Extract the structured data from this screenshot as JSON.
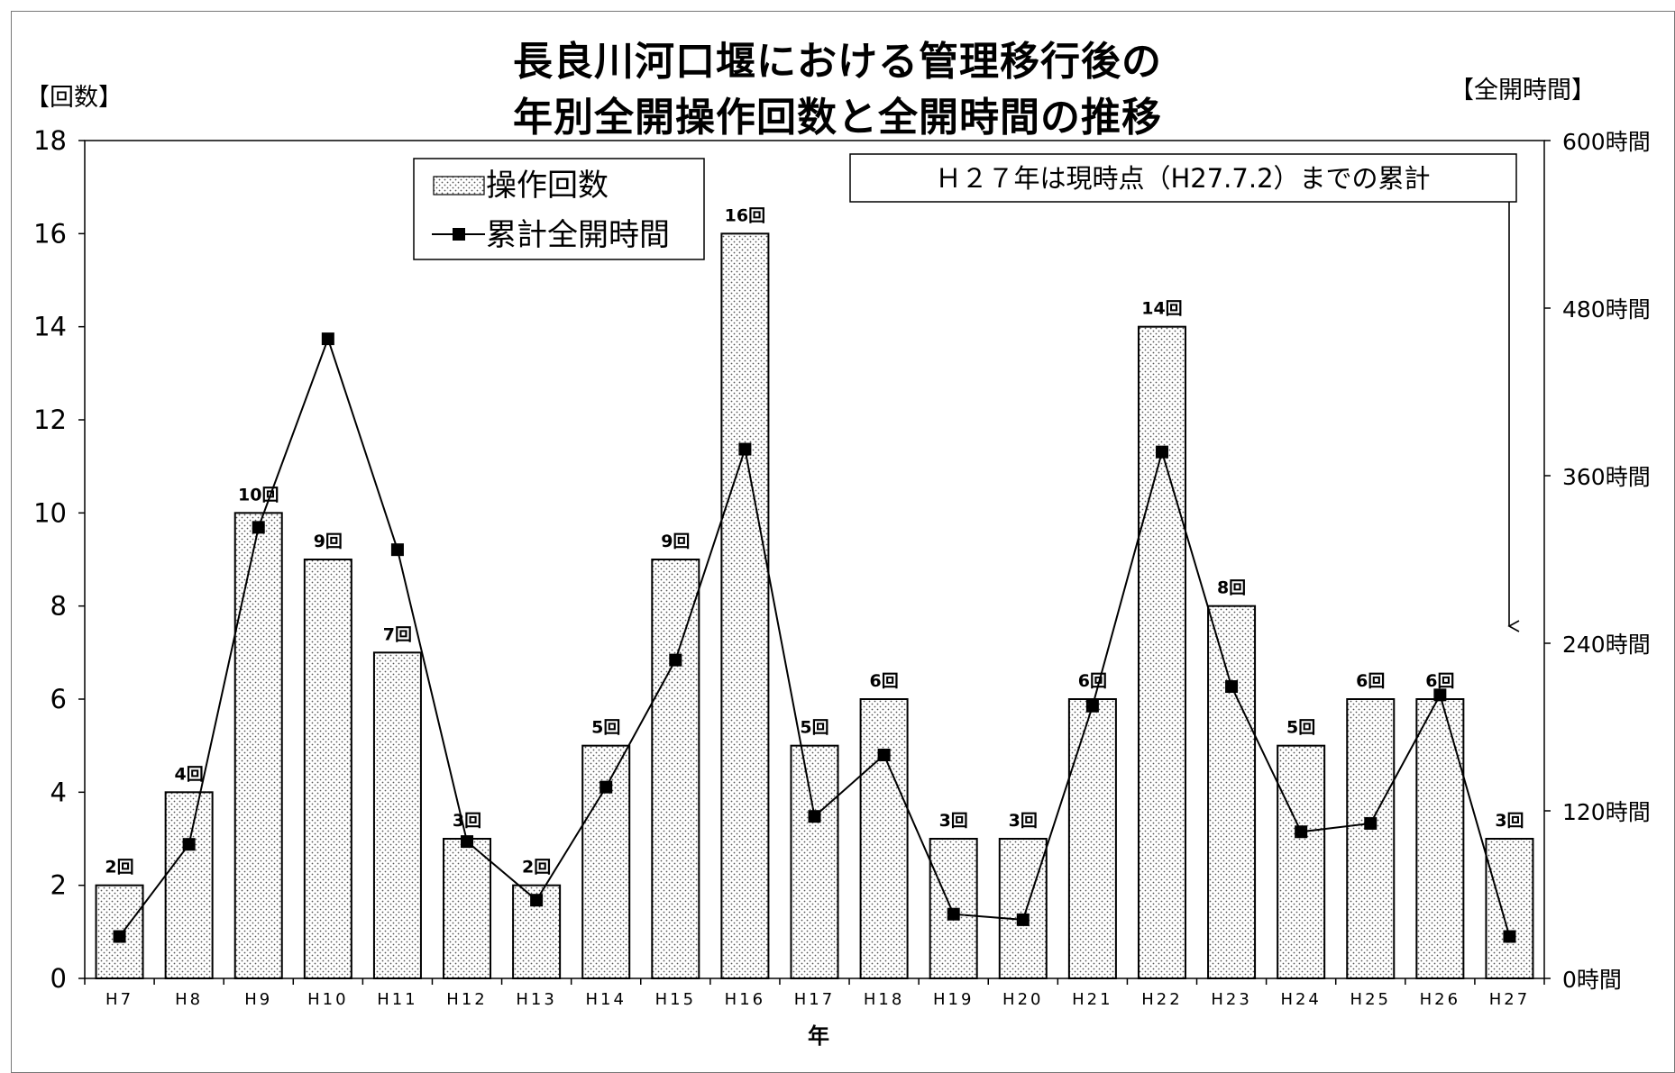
{
  "chart_data": {
    "type": "bar+line",
    "title_lines": [
      "長良川河口堰における管理移行後の",
      "年別全開操作回数と全開時間の推移"
    ],
    "y_left_label": "【回数】",
    "y_right_label": "【全開時間】",
    "xlabel": "年",
    "categories": [
      "H7",
      "H8",
      "H9",
      "H10",
      "H11",
      "H12",
      "H13",
      "H14",
      "H15",
      "H16",
      "H17",
      "H18",
      "H19",
      "H20",
      "H21",
      "H22",
      "H23",
      "H24",
      "H25",
      "H26",
      "H27"
    ],
    "y_left_range": [
      0,
      18
    ],
    "y_left_ticks": [
      "0",
      "2",
      "4",
      "6",
      "8",
      "10",
      "12",
      "14",
      "16",
      "18"
    ],
    "y_right_range": [
      0,
      600
    ],
    "y_right_ticks": [
      "0時間",
      "120時間",
      "240時間",
      "360時間",
      "480時間",
      "600時間"
    ],
    "series": [
      {
        "name": "操作回数",
        "kind": "bar",
        "values": [
          2,
          4,
          10,
          9,
          7,
          3,
          2,
          5,
          9,
          16,
          5,
          6,
          3,
          3,
          6,
          14,
          8,
          5,
          6,
          6,
          3
        ],
        "labels": [
          "2回",
          "4回",
          "10回",
          "9回",
          "7回",
          "3回",
          "2回",
          "5回",
          "9回",
          "16回",
          "5回",
          "6回",
          "3回",
          "3回",
          "6回",
          "14回",
          "8回",
          "5回",
          "6回",
          "6回",
          "3回"
        ]
      },
      {
        "name": "累計全開時間",
        "kind": "line",
        "axis": "right",
        "values": [
          30,
          96,
          323,
          458,
          307,
          98,
          56,
          137,
          228,
          379,
          116,
          160,
          46,
          42,
          195,
          377,
          209,
          105,
          111,
          203,
          30
        ]
      }
    ],
    "annotation": "Ｈ２７年は現時点（H27.7.2）までの累計"
  }
}
